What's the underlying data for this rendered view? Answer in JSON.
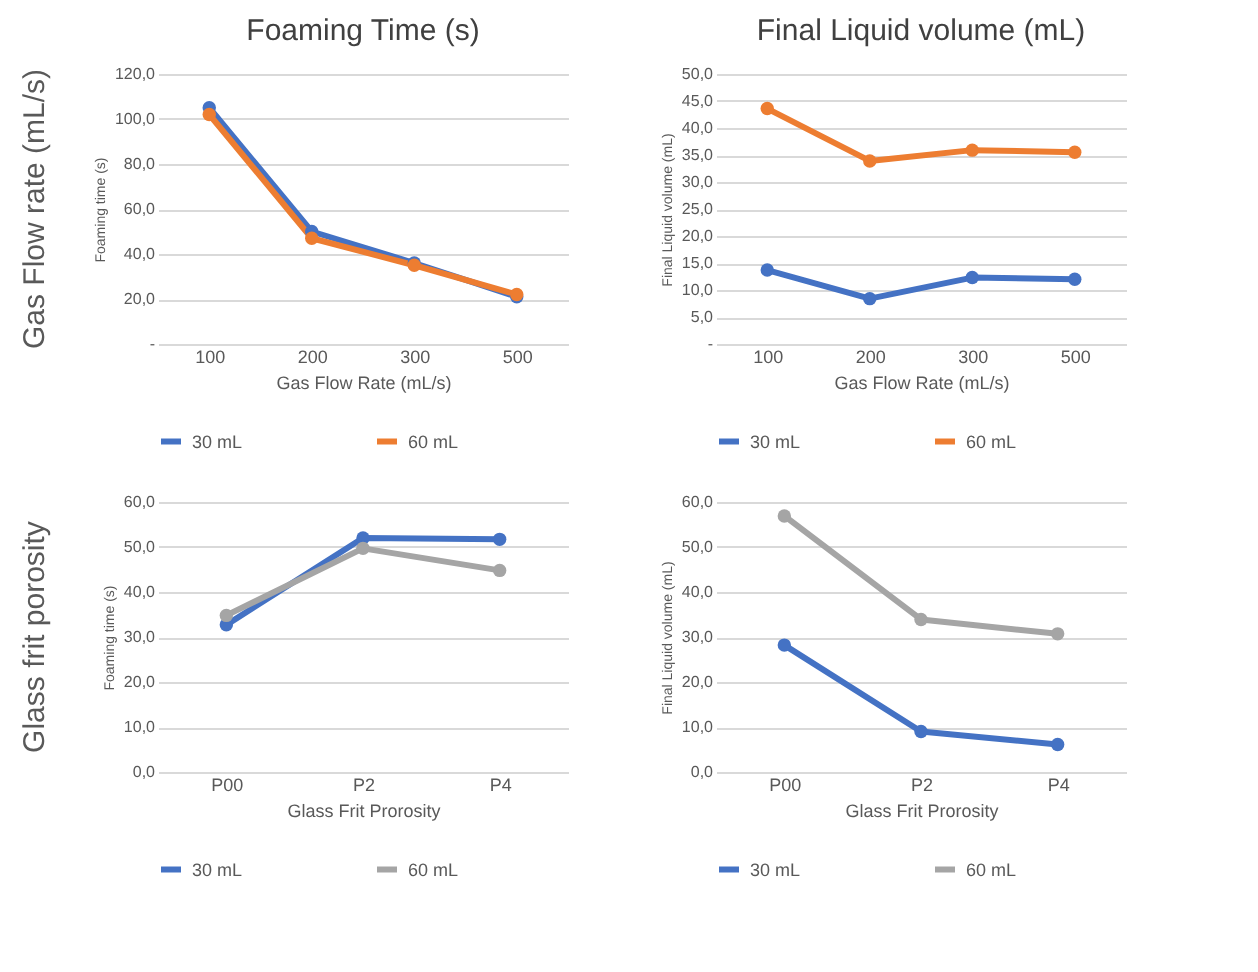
{
  "chart_data": [
    {
      "type": "line",
      "title": "Foaming Time (s)",
      "annotations": [
        "Gas Flow rate (mL/s)"
      ],
      "xlabel": "Gas Flow Rate (mL/s)",
      "ylabel": "Foaming time (s)",
      "categories": [
        "100",
        "200",
        "300",
        "500"
      ],
      "series": [
        {
          "name": "30 mL",
          "color": "#4472c4",
          "values": [
            105,
            50,
            36,
            21
          ]
        },
        {
          "name": "60 mL",
          "color": "#ed7d31",
          "values": [
            102,
            47,
            35,
            22
          ]
        }
      ],
      "ylim": [
        0,
        120
      ],
      "yticks": [
        {
          "value": 0,
          "label": "-"
        },
        {
          "value": 20,
          "label": "20,0"
        },
        {
          "value": 40,
          "label": "40,0"
        },
        {
          "value": 60,
          "label": "60,0"
        },
        {
          "value": 80,
          "label": "80,0"
        },
        {
          "value": 100,
          "label": "100,0"
        },
        {
          "value": 120,
          "label": "120,0"
        }
      ],
      "grid": "y",
      "legend": "bottom",
      "marker": "circle",
      "line_style": "solid"
    },
    {
      "type": "line",
      "title": "Final Liquid volume (mL)",
      "xlabel": "Gas Flow Rate (mL/s)",
      "ylabel": "Final Liquid volume (mL)",
      "categories": [
        "100",
        "200",
        "300",
        "500"
      ],
      "series": [
        {
          "name": "30 mL",
          "color": "#4472c4",
          "values": [
            13.7,
            8.4,
            12.3,
            12.0
          ]
        },
        {
          "name": "60 mL",
          "color": "#ed7d31",
          "values": [
            43.6,
            33.9,
            35.9,
            35.5
          ]
        }
      ],
      "ylim": [
        0,
        50
      ],
      "yticks": [
        {
          "value": 0,
          "label": "-"
        },
        {
          "value": 5,
          "label": "5,0"
        },
        {
          "value": 10,
          "label": "10,0"
        },
        {
          "value": 15,
          "label": "15,0"
        },
        {
          "value": 20,
          "label": "20,0"
        },
        {
          "value": 25,
          "label": "25,0"
        },
        {
          "value": 30,
          "label": "30,0"
        },
        {
          "value": 35,
          "label": "35,0"
        },
        {
          "value": 40,
          "label": "40,0"
        },
        {
          "value": 45,
          "label": "45,0"
        },
        {
          "value": 50,
          "label": "50,0"
        }
      ],
      "grid": "y",
      "legend": "bottom",
      "marker": "circle",
      "line_style": "solid"
    },
    {
      "type": "line",
      "annotations": [
        "Glass frit porosity"
      ],
      "xlabel": "Glass Frit Prorosity",
      "ylabel": "Foaming time (s)",
      "categories": [
        "P00",
        "P2",
        "P4"
      ],
      "series": [
        {
          "name": "30 mL",
          "color": "#4472c4",
          "values": [
            32.7,
            52.0,
            51.7
          ]
        },
        {
          "name": "60 mL",
          "color": "#a5a5a5",
          "values": [
            34.8,
            49.7,
            44.8
          ]
        }
      ],
      "ylim": [
        0,
        60
      ],
      "yticks": [
        {
          "value": 0,
          "label": "0,0"
        },
        {
          "value": 10,
          "label": "10,0"
        },
        {
          "value": 20,
          "label": "20,0"
        },
        {
          "value": 30,
          "label": "30,0"
        },
        {
          "value": 40,
          "label": "40,0"
        },
        {
          "value": 50,
          "label": "50,0"
        },
        {
          "value": 60,
          "label": "60,0"
        }
      ],
      "grid": "y",
      "legend": "bottom",
      "marker": "circle",
      "line_style": "solid"
    },
    {
      "type": "line",
      "xlabel": "Glass Frit Prorosity",
      "ylabel": "Final Liquid volume (mL)",
      "categories": [
        "P00",
        "P2",
        "P4"
      ],
      "series": [
        {
          "name": "30 mL",
          "color": "#4472c4",
          "values": [
            28.2,
            9.0,
            6.1
          ]
        },
        {
          "name": "60 mL",
          "color": "#a5a5a5",
          "values": [
            56.9,
            33.9,
            30.7
          ]
        }
      ],
      "ylim": [
        0,
        60
      ],
      "yticks": [
        {
          "value": 0,
          "label": "0,0"
        },
        {
          "value": 10,
          "label": "10,0"
        },
        {
          "value": 20,
          "label": "20,0"
        },
        {
          "value": 30,
          "label": "30,0"
        },
        {
          "value": 40,
          "label": "40,0"
        },
        {
          "value": 50,
          "label": "50,0"
        },
        {
          "value": 60,
          "label": "60,0"
        }
      ],
      "grid": "y",
      "legend": "bottom",
      "marker": "circle",
      "line_style": "solid"
    }
  ]
}
